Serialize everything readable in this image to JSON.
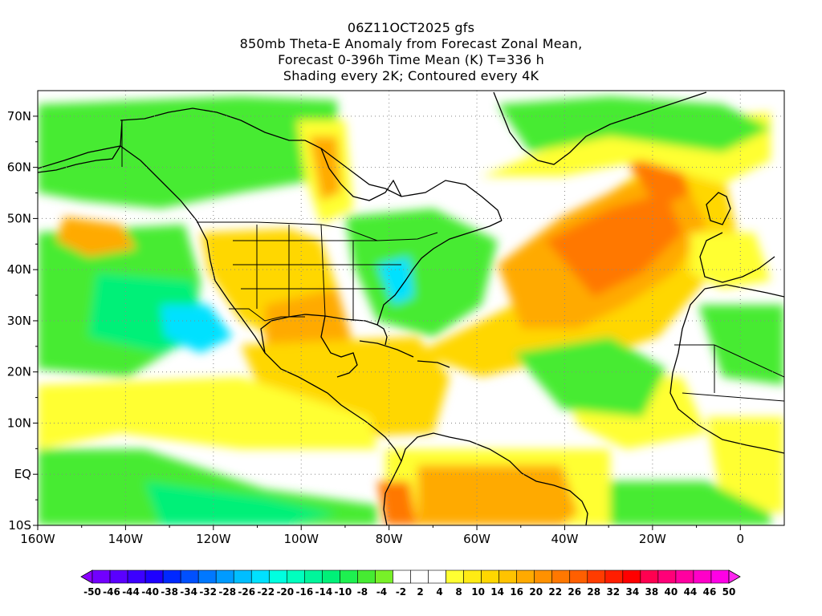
{
  "title": {
    "line1": "06Z11OCT2025 gfs",
    "line2": "850mb Theta-E Anomaly from Forecast Zonal Mean,",
    "line3": "Forecast 0-396h Time Mean (K) T=336 h",
    "line4": "Shading every 2K; Contoured every 4K"
  },
  "map": {
    "lon_range": [
      -160,
      10
    ],
    "lat_range": [
      -10,
      75
    ],
    "lon_ticks": [
      "160W",
      "140W",
      "120W",
      "100W",
      "80W",
      "60W",
      "40W",
      "20W",
      "0"
    ],
    "lat_ticks": [
      "10S",
      "EQ",
      "10N",
      "20N",
      "30N",
      "40N",
      "50N",
      "60N",
      "70N"
    ]
  },
  "colorbar": {
    "labels": [
      "-50",
      "-46",
      "-44",
      "-40",
      "-38",
      "-34",
      "-32",
      "-28",
      "-26",
      "-22",
      "-20",
      "-16",
      "-14",
      "-10",
      "-8",
      "-4",
      "-2",
      "2",
      "4",
      "8",
      "10",
      "14",
      "16",
      "20",
      "22",
      "26",
      "28",
      "32",
      "34",
      "38",
      "40",
      "44",
      "46",
      "50"
    ],
    "colors": [
      "#8a00ff",
      "#7200ff",
      "#5a00ff",
      "#3c00ff",
      "#1e00ff",
      "#0028ff",
      "#0050ff",
      "#0078ff",
      "#009bff",
      "#00beff",
      "#00e1ff",
      "#00ffe0",
      "#00ffbe",
      "#00f59b",
      "#00f078",
      "#1ef050",
      "#46eb32",
      "#78f028",
      "#ffffff",
      "#ffffff",
      "#ffffff",
      "#ffff32",
      "#ffeb14",
      "#ffd700",
      "#ffc300",
      "#ffaa00",
      "#ff9100",
      "#ff7800",
      "#ff5f00",
      "#ff3c00",
      "#ff1e00",
      "#ff0000",
      "#ff0050",
      "#ff0078",
      "#ff00a0",
      "#ff00c8",
      "#ff00e6",
      "#ff28f0"
    ]
  },
  "colors": {
    "warm_strong": "#ff7800",
    "warm": "#ffaa00",
    "warm_light": "#ffd700",
    "yellow": "#ffff32",
    "green": "#46eb32",
    "green_light": "#00f078",
    "teal": "#00e1ff",
    "neutral": "#ffffff"
  }
}
